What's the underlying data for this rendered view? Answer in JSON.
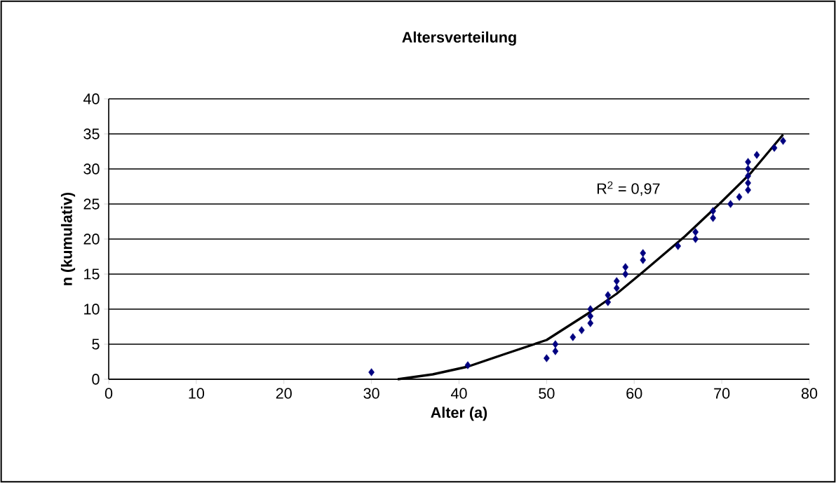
{
  "chart_data": {
    "type": "scatter",
    "title": "Altersverteilung",
    "xlabel": "Alter (a)",
    "ylabel": "n (kumulativ)",
    "xlim": [
      0,
      80
    ],
    "ylim": [
      0,
      40
    ],
    "xticks": [
      0,
      10,
      20,
      30,
      40,
      50,
      60,
      70,
      80
    ],
    "yticks": [
      0,
      5,
      10,
      15,
      20,
      25,
      30,
      35,
      40
    ],
    "grid": "y",
    "annotations": [
      "R$^{2}$ = 0,97"
    ],
    "series": [
      {
        "color": "#000080",
        "marker": "diamond",
        "x": [
          30,
          41,
          50,
          51,
          51,
          53,
          54,
          55,
          55,
          55,
          57,
          57,
          58,
          58,
          59,
          59,
          61,
          61,
          65,
          67,
          67,
          69,
          69,
          71,
          72,
          73,
          73,
          73,
          73,
          73,
          74,
          76,
          77
        ],
        "values": [
          1,
          2,
          3,
          4,
          5,
          6,
          7,
          8,
          9,
          10,
          11,
          12,
          13,
          14,
          15,
          16,
          17,
          18,
          19,
          20,
          21,
          23,
          24,
          25,
          26,
          27,
          28,
          29,
          30,
          31,
          32,
          33,
          34
        ]
      },
      {
        "type": "line",
        "color": "#000000",
        "marker": "none",
        "line_style": "solid",
        "x": [
          33,
          37,
          41,
          45,
          50,
          55,
          58,
          61,
          65.8,
          69.8,
          73.3,
          77
        ],
        "values": [
          0,
          0.7,
          1.8,
          3.5,
          5.6,
          9.6,
          12.2,
          15.3,
          20.4,
          25.1,
          29.4,
          34.9
        ]
      }
    ]
  }
}
